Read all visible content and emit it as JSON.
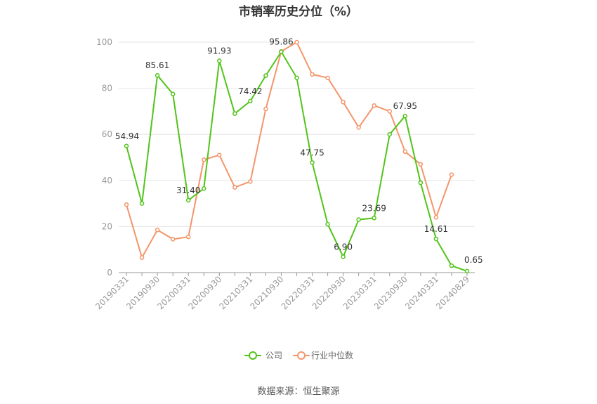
{
  "chart_data": {
    "type": "line",
    "title": "市销率历史分位（%）",
    "x": [
      "20190331",
      "20190630",
      "20190930",
      "20191231",
      "20200331",
      "20200630",
      "20200930",
      "20201231",
      "20210331",
      "20210630",
      "20210930",
      "20211231",
      "20220331",
      "20220630",
      "20220930",
      "20221231",
      "20230331",
      "20230630",
      "20230930",
      "20231231",
      "20240331",
      "20240630",
      "20240829"
    ],
    "x_tick_labels": [
      "20190331",
      "20190930",
      "20200331",
      "20200930",
      "20210331",
      "20210930",
      "20220331",
      "20220930",
      "20230331",
      "20230930",
      "20240331",
      "20240829"
    ],
    "ylim": [
      0,
      100
    ],
    "y_ticks": [
      0,
      20,
      40,
      60,
      80,
      100
    ],
    "grid": true,
    "legend_position": "bottom",
    "series": [
      {
        "name": "公司",
        "color": "#52c41a",
        "values": [
          54.94,
          30,
          85.61,
          77.5,
          31.4,
          36.5,
          91.93,
          69,
          74.42,
          85.5,
          95.86,
          84.5,
          47.75,
          21,
          6.9,
          23,
          23.69,
          60,
          67.95,
          39,
          14.61,
          3,
          0.65
        ],
        "labels": {
          "0": "54.94",
          "2": "85.61",
          "4": "31.40",
          "6": "91.93",
          "8": "74.42",
          "10": "95.86",
          "12": "47.75",
          "14": "6.90",
          "16": "23.69",
          "18": "67.95",
          "20": "14.61",
          "22": "0.65"
        }
      },
      {
        "name": "行业中位数",
        "color": "#f4956b",
        "values": [
          29.5,
          6.5,
          18.5,
          14.5,
          15.5,
          49,
          51,
          37,
          39.5,
          71,
          96,
          100,
          86,
          84.5,
          74,
          63,
          72.5,
          70,
          52.5,
          47,
          24,
          42.5,
          null
        ]
      }
    ]
  },
  "source": "数据来源：恒生聚源"
}
